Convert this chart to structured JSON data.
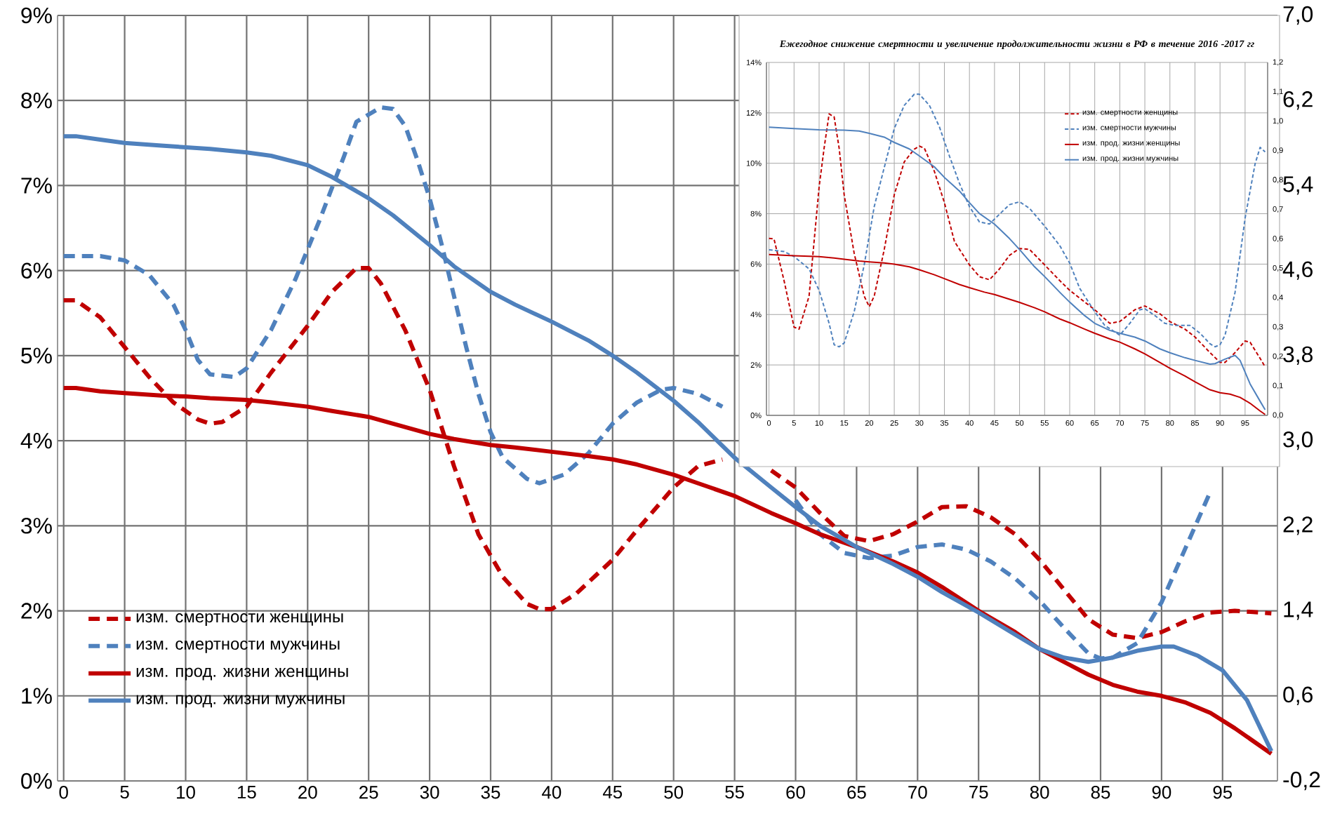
{
  "chart_data": [
    {
      "type": "line",
      "xlim": [
        -0.5,
        99.5
      ],
      "xticks": [
        0,
        5,
        10,
        15,
        20,
        25,
        30,
        35,
        40,
        45,
        50,
        55,
        60,
        65,
        70,
        75,
        80,
        85,
        90,
        95
      ],
      "ylim": [
        0,
        9
      ],
      "yticks": [
        {
          "value": 0,
          "label": "0%"
        },
        {
          "value": 1,
          "label": "1%"
        },
        {
          "value": 2,
          "label": "2%"
        },
        {
          "value": 3,
          "label": "3%"
        },
        {
          "value": 4,
          "label": "4%"
        },
        {
          "value": 5,
          "label": "5%"
        },
        {
          "value": 6,
          "label": "6%"
        },
        {
          "value": 7,
          "label": "7%"
        },
        {
          "value": 8,
          "label": "8%"
        },
        {
          "value": 9,
          "label": "9%"
        }
      ],
      "y2lim": [
        -0.2,
        7.0
      ],
      "y2ticks": [
        {
          "value": -0.2,
          "label": "-0,2"
        },
        {
          "value": 0.6,
          "label": "0,6"
        },
        {
          "value": 1.4,
          "label": "1,4"
        },
        {
          "value": 2.2,
          "label": "2,2"
        },
        {
          "value": 3.0,
          "label": "3,0"
        },
        {
          "value": 3.8,
          "label": "3,8"
        },
        {
          "value": 4.6,
          "label": "4,6"
        },
        {
          "value": 5.4,
          "label": "5,4"
        },
        {
          "value": 6.2,
          "label": "6,2"
        },
        {
          "value": 7.0,
          "label": "7,0"
        }
      ],
      "grid": true,
      "legend": "bottom left",
      "series": [
        {
          "name": "изм. смертности женщины",
          "color": "#c00000",
          "line_style": "dashed",
          "x": [
            0,
            1,
            3,
            5,
            7,
            9,
            11,
            12,
            13,
            15,
            17,
            20,
            22,
            24,
            25,
            26,
            28,
            30,
            32,
            34,
            36,
            38,
            39,
            40,
            42,
            45,
            47,
            50,
            52,
            54,
            56,
            58,
            60,
            62,
            64,
            66,
            68,
            70,
            72,
            74,
            76,
            78,
            80,
            82,
            84,
            86,
            88,
            90,
            92,
            94,
            96,
            99
          ],
          "values": [
            5.65,
            5.65,
            5.45,
            5.1,
            4.75,
            4.45,
            4.25,
            4.2,
            4.22,
            4.4,
            4.8,
            5.35,
            5.75,
            6.03,
            6.03,
            5.85,
            5.3,
            4.6,
            3.7,
            2.9,
            2.4,
            2.08,
            2.02,
            2.02,
            2.2,
            2.6,
            2.95,
            3.45,
            3.7,
            3.78,
            null,
            3.65,
            3.45,
            3.15,
            2.88,
            2.82,
            2.9,
            3.05,
            3.22,
            3.23,
            3.1,
            2.9,
            2.6,
            2.25,
            1.9,
            1.72,
            1.68,
            1.75,
            1.88,
            1.98,
            2.0,
            1.97
          ]
        },
        {
          "name": "изм. смертности мужчины",
          "color": "#4f81bd",
          "line_style": "dashed",
          "x": [
            0,
            3,
            5,
            7,
            9,
            10,
            11,
            12,
            14,
            15,
            17,
            19,
            21,
            23,
            24,
            26,
            27,
            28,
            29,
            30,
            31,
            32,
            33,
            34,
            35,
            36,
            38,
            39,
            41,
            43,
            45,
            47,
            49,
            50,
            52,
            54,
            56,
            58,
            60,
            62,
            64,
            66,
            68,
            70,
            72,
            74,
            76,
            78,
            80,
            82,
            84,
            85,
            86,
            88,
            90,
            92,
            94
          ],
          "values": [
            6.17,
            6.17,
            6.12,
            5.95,
            5.6,
            5.3,
            4.95,
            4.78,
            4.75,
            4.85,
            5.3,
            5.9,
            6.6,
            7.35,
            7.75,
            7.92,
            7.9,
            7.7,
            7.3,
            6.85,
            6.3,
            5.7,
            5.1,
            4.55,
            4.1,
            3.8,
            3.55,
            3.5,
            3.6,
            3.85,
            4.2,
            4.45,
            4.6,
            4.62,
            4.55,
            4.4,
            null,
            null,
            3.3,
            2.9,
            2.68,
            2.62,
            2.65,
            2.75,
            2.78,
            2.72,
            2.58,
            2.38,
            2.12,
            1.8,
            1.5,
            1.44,
            1.45,
            1.62,
            2.1,
            2.75,
            3.4
          ]
        },
        {
          "name": "изм. прод. жизни женщины",
          "color": "#c00000",
          "line_style": "solid",
          "x": [
            0,
            1,
            3,
            5,
            8,
            10,
            12,
            15,
            17,
            20,
            22,
            25,
            27,
            30,
            32,
            35,
            37,
            40,
            43,
            45,
            47,
            50,
            52,
            55,
            58,
            60,
            62,
            65,
            68,
            70,
            72,
            75,
            78,
            80,
            82,
            84,
            86,
            88,
            90,
            92,
            94,
            96,
            99
          ],
          "values": [
            4.62,
            4.62,
            4.58,
            4.56,
            4.53,
            4.52,
            4.5,
            4.48,
            4.45,
            4.4,
            4.35,
            4.28,
            4.2,
            4.08,
            4.02,
            3.95,
            3.92,
            3.87,
            3.82,
            3.78,
            3.72,
            3.6,
            3.5,
            3.35,
            3.15,
            3.03,
            2.9,
            2.75,
            2.58,
            2.45,
            2.28,
            2.0,
            1.75,
            1.55,
            1.4,
            1.25,
            1.13,
            1.05,
            1.0,
            0.92,
            0.8,
            0.62,
            0.32
          ]
        },
        {
          "name": "изм. прод. жизни мужчины",
          "color": "#4f81bd",
          "line_style": "solid",
          "x": [
            0,
            1,
            3,
            5,
            8,
            10,
            12,
            15,
            17,
            20,
            22,
            25,
            27,
            30,
            32,
            35,
            37,
            40,
            43,
            45,
            47,
            50,
            52,
            55,
            58,
            60,
            62,
            65,
            68,
            70,
            72,
            75,
            78,
            80,
            82,
            84,
            86,
            88,
            90,
            91,
            93,
            95,
            97,
            99
          ],
          "values": [
            7.58,
            7.58,
            7.54,
            7.5,
            7.47,
            7.45,
            7.43,
            7.39,
            7.35,
            7.24,
            7.1,
            6.85,
            6.65,
            6.3,
            6.05,
            5.75,
            5.6,
            5.4,
            5.18,
            5.0,
            4.8,
            4.47,
            4.22,
            3.8,
            3.45,
            3.22,
            3.0,
            2.75,
            2.55,
            2.4,
            2.22,
            1.98,
            1.72,
            1.55,
            1.45,
            1.4,
            1.45,
            1.53,
            1.58,
            1.58,
            1.47,
            1.3,
            0.95,
            0.35
          ]
        }
      ]
    },
    {
      "type": "line",
      "title": "Ежегодное снижение смертности и увеличение продолжительности жизни в РФ в течение 2016 -2017 гг",
      "xlim": [
        -0.5,
        99.5
      ],
      "xticks": [
        0,
        5,
        10,
        15,
        20,
        25,
        30,
        35,
        40,
        45,
        50,
        55,
        60,
        65,
        70,
        75,
        80,
        85,
        90,
        95
      ],
      "ylim": [
        0,
        14
      ],
      "yticks": [
        {
          "value": 0,
          "label": "0%"
        },
        {
          "value": 2,
          "label": "2%"
        },
        {
          "value": 4,
          "label": "4%"
        },
        {
          "value": 6,
          "label": "6%"
        },
        {
          "value": 8,
          "label": "8%"
        },
        {
          "value": 10,
          "label": "10%"
        },
        {
          "value": 12,
          "label": "12%"
        },
        {
          "value": 14,
          "label": "14%"
        }
      ],
      "y2lim": [
        0,
        1.2
      ],
      "y2ticks": [
        {
          "value": 0,
          "label": "0,0"
        },
        {
          "value": 0.1,
          "label": "0,1"
        },
        {
          "value": 0.2,
          "label": "0,2"
        },
        {
          "value": 0.3,
          "label": "0,3"
        },
        {
          "value": 0.4,
          "label": "0,4"
        },
        {
          "value": 0.5,
          "label": "0,5"
        },
        {
          "value": 0.6,
          "label": "0,6"
        },
        {
          "value": 0.7,
          "label": "0,7"
        },
        {
          "value": 0.8,
          "label": "0,8"
        },
        {
          "value": 0.9,
          "label": "0,9"
        },
        {
          "value": 1.0,
          "label": "1,0"
        },
        {
          "value": 1.1,
          "label": "1,1"
        },
        {
          "value": 1.2,
          "label": "1,2"
        }
      ],
      "grid": true,
      "legend": "top right",
      "series": [
        {
          "name": "изм. смертности женщины",
          "color": "#c00000",
          "line_style": "dashed",
          "x": [
            0,
            1,
            3,
            5,
            6,
            8,
            10,
            11,
            12,
            13,
            14,
            15,
            17,
            19,
            20,
            21,
            23,
            25,
            27,
            29,
            30,
            31,
            33,
            35,
            37,
            40,
            42,
            44,
            46,
            48,
            50,
            52,
            55,
            58,
            60,
            62,
            65,
            68,
            70,
            73,
            75,
            78,
            80,
            83,
            85,
            88,
            90,
            91,
            93,
            95,
            96,
            98,
            99
          ],
          "values": [
            7.02,
            7.0,
            5.35,
            3.5,
            3.42,
            4.73,
            9.06,
            10.6,
            11.96,
            11.84,
            10.6,
            8.75,
            6.43,
            4.73,
            4.31,
            4.73,
            6.58,
            8.75,
            10.06,
            10.56,
            10.68,
            10.6,
            9.68,
            8.44,
            6.9,
            5.97,
            5.5,
            5.38,
            5.81,
            6.35,
            6.62,
            6.58,
            5.97,
            5.35,
            4.96,
            4.65,
            4.19,
            3.65,
            3.72,
            4.19,
            4.34,
            4.03,
            3.72,
            3.42,
            3.11,
            2.49,
            2.1,
            2.1,
            2.49,
            2.95,
            2.9,
            2.26,
            1.92
          ]
        },
        {
          "name": "изм. смертности мужчины",
          "color": "#4f81bd",
          "line_style": "dashed",
          "x": [
            0,
            3,
            5,
            8,
            10,
            12,
            13,
            14,
            15,
            17,
            19,
            21,
            23,
            25,
            27,
            29,
            30,
            32,
            34,
            36,
            38,
            40,
            42,
            44,
            46,
            48,
            50,
            52,
            55,
            58,
            60,
            62,
            65,
            67,
            70,
            72,
            74,
            75,
            77,
            79,
            81,
            84,
            86,
            88,
            89,
            90,
            91,
            93,
            95,
            97,
            98,
            99
          ],
          "values": [
            6.57,
            6.5,
            6.3,
            5.81,
            4.96,
            3.65,
            2.8,
            2.72,
            2.87,
            4.11,
            5.97,
            8.28,
            9.83,
            11.38,
            12.3,
            12.74,
            12.74,
            12.3,
            11.45,
            10.29,
            9.21,
            8.28,
            7.67,
            7.59,
            7.98,
            8.36,
            8.47,
            8.21,
            7.51,
            6.74,
            6.04,
            5.04,
            4.11,
            3.57,
            3.18,
            3.65,
            4.19,
            4.23,
            3.96,
            3.65,
            3.57,
            3.57,
            3.26,
            2.84,
            2.72,
            2.8,
            3.18,
            4.88,
            7.82,
            9.98,
            10.63,
            10.45
          ]
        },
        {
          "name": "изм. прод. жизни женщины",
          "color": "#c00000",
          "line_style": "solid",
          "axis": "y2",
          "x": [
            0,
            5,
            10,
            13,
            15,
            18,
            20,
            23,
            25,
            28,
            30,
            33,
            35,
            38,
            40,
            43,
            45,
            48,
            50,
            53,
            55,
            58,
            60,
            63,
            65,
            68,
            70,
            73,
            75,
            78,
            80,
            83,
            85,
            88,
            90,
            92,
            94,
            96,
            98,
            99
          ],
          "values": [
            0.547,
            0.543,
            0.54,
            0.535,
            0.531,
            0.525,
            0.522,
            0.518,
            0.514,
            0.505,
            0.495,
            0.478,
            0.465,
            0.445,
            0.434,
            0.419,
            0.411,
            0.395,
            0.384,
            0.366,
            0.352,
            0.328,
            0.315,
            0.293,
            0.279,
            0.26,
            0.249,
            0.226,
            0.209,
            0.18,
            0.16,
            0.134,
            0.114,
            0.087,
            0.077,
            0.072,
            0.061,
            0.041,
            0.015,
            0.003
          ]
        },
        {
          "name": "изм. прод. жизни мужчины",
          "color": "#4f81bd",
          "line_style": "solid",
          "axis": "y2",
          "x": [
            0,
            5,
            10,
            15,
            18,
            20,
            23,
            25,
            28,
            30,
            33,
            35,
            38,
            40,
            42,
            45,
            48,
            50,
            53,
            55,
            58,
            60,
            63,
            65,
            68,
            70,
            73,
            75,
            78,
            80,
            83,
            85,
            88,
            89,
            91,
            93,
            94,
            96,
            98,
            99
          ],
          "values": [
            0.98,
            0.975,
            0.971,
            0.97,
            0.967,
            0.959,
            0.946,
            0.928,
            0.906,
            0.882,
            0.845,
            0.809,
            0.763,
            0.723,
            0.686,
            0.65,
            0.601,
            0.564,
            0.505,
            0.472,
            0.419,
            0.385,
            0.339,
            0.313,
            0.289,
            0.279,
            0.266,
            0.253,
            0.226,
            0.213,
            0.196,
            0.187,
            0.174,
            0.176,
            0.191,
            0.204,
            0.187,
            0.107,
            0.048,
            0.019
          ]
        }
      ]
    }
  ]
}
